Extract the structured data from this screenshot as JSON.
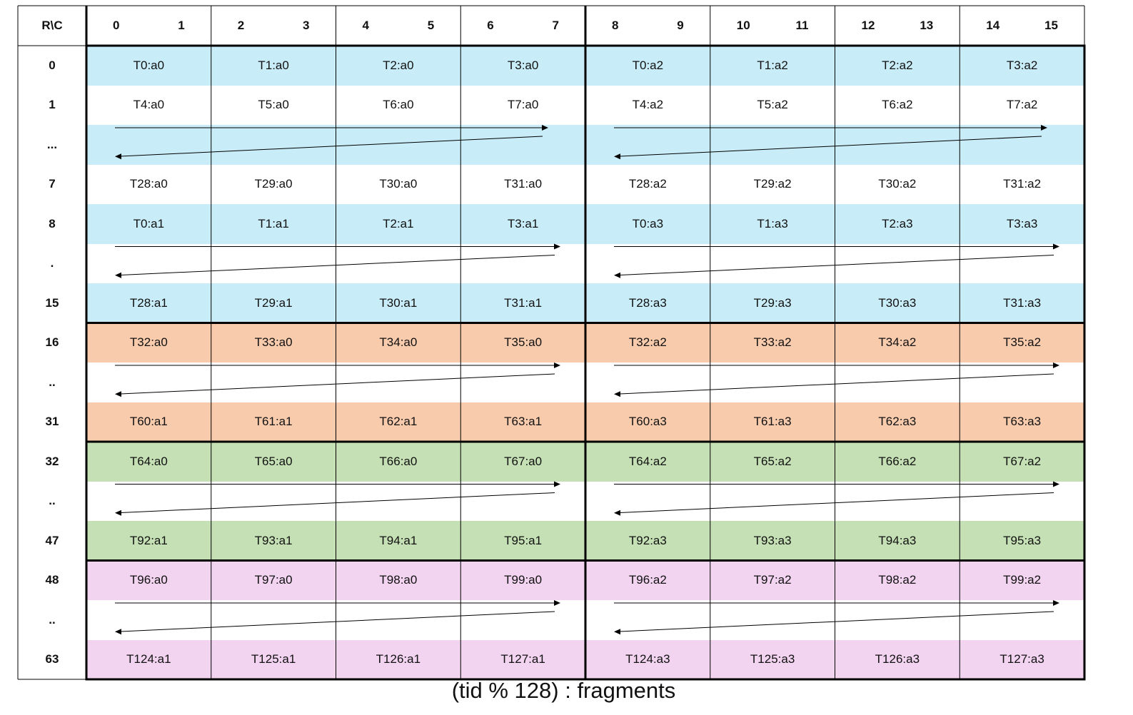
{
  "corner_label": "R\\C",
  "column_headers": [
    [
      "0",
      "1"
    ],
    [
      "2",
      "3"
    ],
    [
      "4",
      "5"
    ],
    [
      "6",
      "7"
    ],
    [
      "8",
      "9"
    ],
    [
      "10",
      "11"
    ],
    [
      "12",
      "13"
    ],
    [
      "14",
      "15"
    ]
  ],
  "colors": {
    "blue": "#C9EDF8",
    "orange": "#F8CBAD",
    "green": "#C5E0B4",
    "pink": "#F2D3F0",
    "white": "#FFFFFF"
  },
  "rows": [
    {
      "label": "0",
      "fill": "blue",
      "cells": [
        "T0:a0",
        "T1:a0",
        "T2:a0",
        "T3:a0",
        "T0:a2",
        "T1:a2",
        "T2:a2",
        "T3:a2"
      ]
    },
    {
      "label": "1",
      "fill": "white",
      "cells": [
        "T4:a0",
        "T5:a0",
        "T6:a0",
        "T7:a0",
        "T4:a2",
        "T5:a2",
        "T6:a2",
        "T7:a2"
      ]
    },
    {
      "label": "...",
      "fill": "blue",
      "arrow": true
    },
    {
      "label": "7",
      "fill": "white",
      "cells": [
        "T28:a0",
        "T29:a0",
        "T30:a0",
        "T31:a0",
        "T28:a2",
        "T29:a2",
        "T30:a2",
        "T31:a2"
      ]
    },
    {
      "label": "8",
      "fill": "blue",
      "cells": [
        "T0:a1",
        "T1:a1",
        "T2:a1",
        "T3:a1",
        "T0:a3",
        "T1:a3",
        "T2:a3",
        "T3:a3"
      ]
    },
    {
      "label": ".",
      "fill": "white",
      "arrow": true
    },
    {
      "label": "15",
      "fill": "blue",
      "cells": [
        "T28:a1",
        "T29:a1",
        "T30:a1",
        "T31:a1",
        "T28:a3",
        "T29:a3",
        "T30:a3",
        "T31:a3"
      ]
    },
    {
      "label": "16",
      "fill": "orange",
      "cells": [
        "T32:a0",
        "T33:a0",
        "T34:a0",
        "T35:a0",
        "T32:a2",
        "T33:a2",
        "T34:a2",
        "T35:a2"
      ]
    },
    {
      "label": "..",
      "fill": "white",
      "arrow": true
    },
    {
      "label": "31",
      "fill": "orange",
      "cells": [
        "T60:a1",
        "T61:a1",
        "T62:a1",
        "T63:a1",
        "T60:a3",
        "T61:a3",
        "T62:a3",
        "T63:a3"
      ]
    },
    {
      "label": "32",
      "fill": "green",
      "cells": [
        "T64:a0",
        "T65:a0",
        "T66:a0",
        "T67:a0",
        "T64:a2",
        "T65:a2",
        "T66:a2",
        "T67:a2"
      ]
    },
    {
      "label": "..",
      "fill": "white",
      "arrow": true
    },
    {
      "label": "47",
      "fill": "green",
      "cells": [
        "T92:a1",
        "T93:a1",
        "T94:a1",
        "T95:a1",
        "T92:a3",
        "T93:a3",
        "T94:a3",
        "T95:a3"
      ]
    },
    {
      "label": "48",
      "fill": "pink",
      "cells": [
        "T96:a0",
        "T97:a0",
        "T98:a0",
        "T99:a0",
        "T96:a2",
        "T97:a2",
        "T98:a2",
        "T99:a2"
      ]
    },
    {
      "label": "..",
      "fill": "white",
      "arrow": true
    },
    {
      "label": "63",
      "fill": "pink",
      "cells": [
        "T124:a1",
        "T125:a1",
        "T126:a1",
        "T127:a1",
        "T124:a3",
        "T125:a3",
        "T126:a3",
        "T127:a3"
      ]
    }
  ],
  "caption": "(tid % 128) : fragments"
}
